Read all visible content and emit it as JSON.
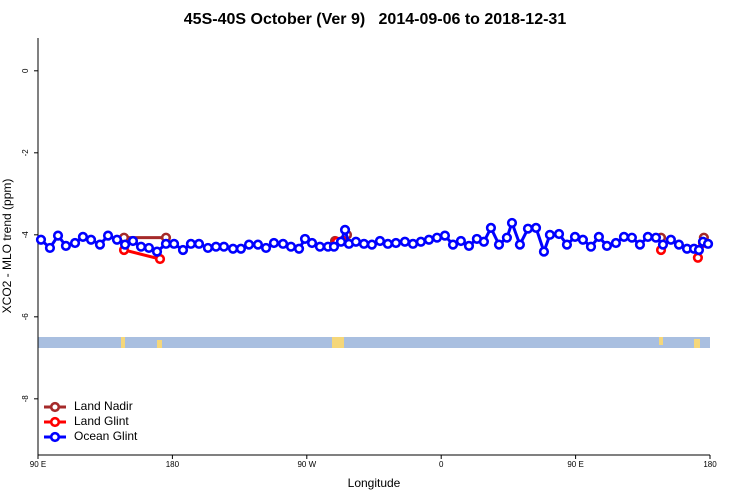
{
  "chart_data": {
    "type": "line",
    "title": "45S-40S October (Ver 9)   2014-09-06 to 2018-12-31",
    "x_label": "Longitude",
    "y_label": "XCO2 - MLO trend (ppm)",
    "xlim": [
      90,
      540
    ],
    "xticks": [
      {
        "value": 90,
        "label": "90 E"
      },
      {
        "value": 180,
        "label": "180"
      },
      {
        "value": 270,
        "label": "90 W"
      },
      {
        "value": 360,
        "label": "0"
      },
      {
        "value": 450,
        "label": "90 E"
      },
      {
        "value": 540,
        "label": "180"
      }
    ],
    "ylim": [
      -9.37,
      0.8
    ],
    "yticks": [
      0,
      -2,
      -4,
      -6,
      -8
    ],
    "legend": "bottom-left",
    "series": [
      {
        "name": "Land Nadir",
        "color": "#a52a2a",
        "x": [
          147.6,
          175.7,
          null,
          288.9,
          296.9,
          null,
          507.2,
          null,
          535.9
        ],
        "values": [
          -4.07,
          -4.07,
          null,
          -4.15,
          -4.0,
          null,
          -4.07,
          null,
          -4.07
        ]
      },
      {
        "name": "Land Glint",
        "color": "#ff0000",
        "x": [
          147.6,
          171.7,
          null,
          290.2,
          294.2,
          null,
          507.2,
          null,
          531.9,
          535.3
        ],
        "values": [
          -4.37,
          -4.59,
          null,
          -4.17,
          -4.15,
          null,
          -4.37,
          null,
          -4.56,
          -4.2
        ]
      },
      {
        "name": "Ocean Glint",
        "color": "#0000ff",
        "x": [
          92.0,
          98.0,
          103.4,
          108.7,
          114.8,
          120.1,
          125.5,
          131.5,
          136.9,
          142.9,
          148.3,
          153.6,
          159.0,
          164.3,
          169.7,
          175.7,
          181.1,
          187.1,
          192.4,
          197.8,
          203.8,
          209.2,
          214.5,
          220.6,
          225.9,
          231.3,
          237.3,
          242.7,
          248.0,
          254.1,
          259.4,
          264.8,
          268.8,
          273.5,
          278.8,
          284.2,
          288.2,
          292.9,
          295.6,
          298.2,
          302.9,
          308.3,
          313.6,
          319.0,
          324.3,
          329.7,
          335.7,
          341.1,
          346.4,
          351.8,
          357.2,
          362.5,
          367.9,
          373.2,
          378.6,
          383.9,
          388.6,
          393.3,
          398.7,
          404.0,
          407.4,
          412.7,
          418.1,
          423.5,
          428.8,
          432.8,
          438.9,
          444.2,
          449.6,
          454.9,
          460.3,
          465.6,
          471.0,
          477.0,
          482.4,
          487.7,
          493.1,
          498.4,
          503.8,
          508.5,
          513.8,
          519.2,
          524.6,
          529.3,
          532.6,
          535.3,
          538.7
        ],
        "values": [
          -4.12,
          -4.32,
          -4.02,
          -4.27,
          -4.2,
          -4.05,
          -4.12,
          -4.24,
          -4.02,
          -4.12,
          -4.24,
          -4.15,
          -4.29,
          -4.32,
          -4.41,
          -4.22,
          -4.22,
          -4.37,
          -4.22,
          -4.22,
          -4.32,
          -4.29,
          -4.29,
          -4.34,
          -4.34,
          -4.24,
          -4.24,
          -4.32,
          -4.2,
          -4.22,
          -4.29,
          -4.34,
          -4.1,
          -4.2,
          -4.29,
          -4.29,
          -4.29,
          -4.17,
          -3.88,
          -4.22,
          -4.17,
          -4.22,
          -4.24,
          -4.15,
          -4.22,
          -4.2,
          -4.17,
          -4.22,
          -4.17,
          -4.12,
          -4.07,
          -4.02,
          -4.24,
          -4.15,
          -4.27,
          -4.1,
          -4.17,
          -3.83,
          -4.24,
          -4.07,
          -3.71,
          -4.24,
          -3.85,
          -3.83,
          -4.41,
          -4.0,
          -3.98,
          -4.24,
          -4.05,
          -4.12,
          -4.29,
          -4.05,
          -4.27,
          -4.2,
          -4.05,
          -4.07,
          -4.24,
          -4.05,
          -4.07,
          -4.24,
          -4.12,
          -4.24,
          -4.34,
          -4.34,
          -4.37,
          -4.17,
          -4.22
        ]
      }
    ]
  }
}
